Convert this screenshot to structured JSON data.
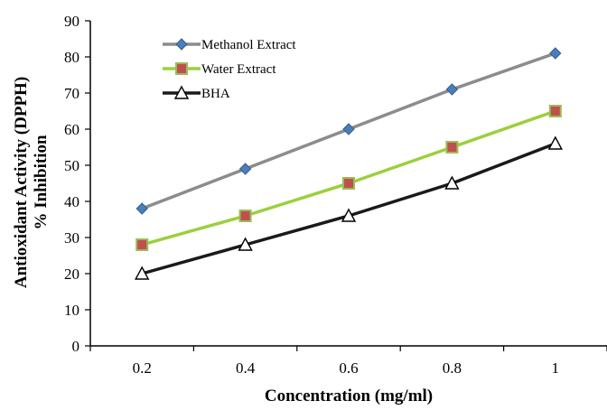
{
  "chart_data": {
    "type": "line",
    "title": "",
    "xlabel": "Concentration (mg/ml)",
    "ylabel": [
      "Antioxidant Activity (DPPH)",
      "% Inhibition"
    ],
    "categories": [
      "0.2",
      "0.4",
      "0.6",
      "0.8",
      "1"
    ],
    "ylim": [
      0,
      90
    ],
    "y_ticks": [
      "0",
      "10",
      "20",
      "30",
      "40",
      "50",
      "60",
      "70",
      "80",
      "90"
    ],
    "grid": false,
    "legend_position": "top-left",
    "series": [
      {
        "name": "Methanol Extract",
        "values": [
          38,
          49,
          60,
          71,
          81
        ],
        "line_color": "#8c8c8c",
        "marker": "diamond",
        "marker_fill": "#4a7ebb",
        "marker_stroke": "#385d8a"
      },
      {
        "name": "Water Extract",
        "values": [
          28,
          36,
          45,
          55,
          65
        ],
        "line_color": "#9bd03c",
        "marker": "square",
        "marker_fill": "#c0504d",
        "marker_stroke": "#9bbb59"
      },
      {
        "name": "BHA",
        "values": [
          20,
          28,
          36,
          45,
          56
        ],
        "line_color": "#1a1a1a",
        "marker": "triangle",
        "marker_fill": "#ffffff",
        "marker_stroke": "#000000"
      }
    ]
  }
}
